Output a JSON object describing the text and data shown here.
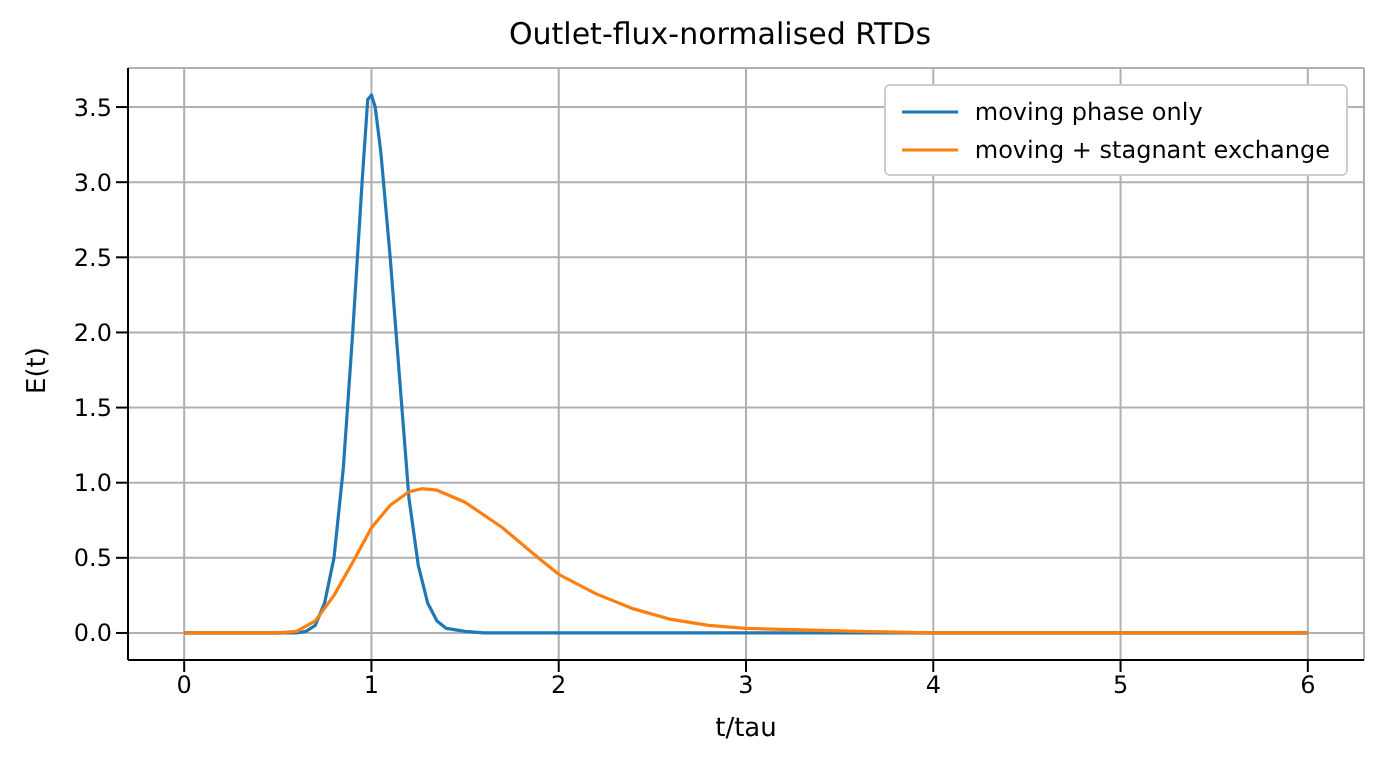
{
  "chart_data": {
    "type": "line",
    "title": "Outlet-flux-normalised RTDs",
    "xlabel": "t/tau",
    "ylabel": "E(t)",
    "xlim": [
      -0.3,
      6.3
    ],
    "xticks": [
      0,
      1,
      2,
      3,
      4,
      5,
      6
    ],
    "ylim": [
      -0.18,
      3.76
    ],
    "yticks": [
      {
        "value": 0,
        "label": "0.0"
      },
      {
        "value": 0.5,
        "label": "0.5"
      },
      {
        "value": 1,
        "label": "1.0"
      },
      {
        "value": 1.5,
        "label": "1.5"
      },
      {
        "value": 2,
        "label": "2.0"
      },
      {
        "value": 2.5,
        "label": "2.5"
      },
      {
        "value": 3,
        "label": "3.0"
      },
      {
        "value": 3.5,
        "label": "3.5"
      }
    ],
    "grid": true,
    "legend": "top right",
    "marker": "none",
    "line_style": "solid",
    "series": [
      {
        "name": "moving phase only",
        "color": "#1f77b4",
        "x": [
          0,
          0.5,
          0.6,
          0.65,
          0.7,
          0.75,
          0.8,
          0.85,
          0.9,
          0.95,
          0.98,
          1.0,
          1.02,
          1.05,
          1.1,
          1.15,
          1.2,
          1.25,
          1.3,
          1.35,
          1.4,
          1.5,
          1.6,
          6
        ],
        "values": [
          0,
          0,
          0,
          0.01,
          0.05,
          0.2,
          0.5,
          1.1,
          2.0,
          3.0,
          3.55,
          3.58,
          3.5,
          3.2,
          2.5,
          1.7,
          0.9,
          0.45,
          0.2,
          0.08,
          0.03,
          0.01,
          0,
          0
        ]
      },
      {
        "name": "moving + stagnant exchange",
        "color": "#ff7f0e",
        "x": [
          0,
          0.5,
          0.6,
          0.7,
          0.8,
          0.9,
          1.0,
          1.1,
          1.2,
          1.27,
          1.35,
          1.5,
          1.7,
          1.9,
          2.0,
          2.2,
          2.4,
          2.6,
          2.8,
          3.0,
          3.3,
          3.6,
          4.0,
          4.5,
          5,
          6
        ],
        "values": [
          0,
          0,
          0.01,
          0.08,
          0.25,
          0.47,
          0.7,
          0.85,
          0.94,
          0.96,
          0.95,
          0.87,
          0.7,
          0.49,
          0.39,
          0.26,
          0.16,
          0.09,
          0.05,
          0.03,
          0.02,
          0.01,
          0,
          0,
          0,
          0
        ]
      }
    ]
  }
}
